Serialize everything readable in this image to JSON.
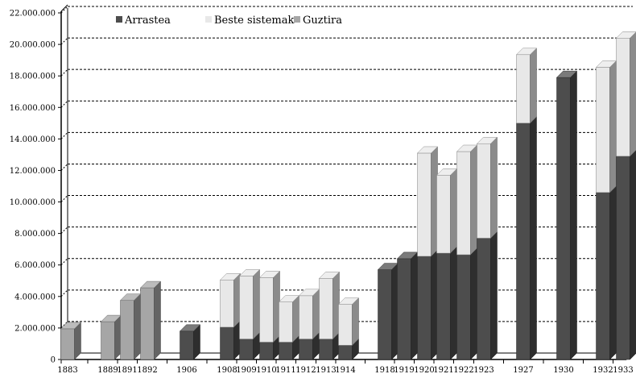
{
  "colors": {
    "arrastea": "#4d4d4d",
    "beste": "#e8e8e8",
    "guztira": "#a6a6a6"
  },
  "chart_data": {
    "type": "bar",
    "stacked": true,
    "three_d": true,
    "title": "",
    "xlabel": "",
    "ylabel": "",
    "ylim": [
      0,
      22000000
    ],
    "yticks": [
      0,
      2000000,
      4000000,
      6000000,
      8000000,
      10000000,
      12000000,
      14000000,
      16000000,
      18000000,
      20000000,
      22000000
    ],
    "ytick_labels": [
      "0",
      "2.000.000",
      "4.000.000",
      "6.000.000",
      "8.000.000",
      "10.000.000",
      "12.000.000",
      "14.000.000",
      "16.000.000",
      "18.000.000",
      "20.000.000",
      "22.000.000"
    ],
    "grid": true,
    "legend_position": "top-left",
    "categories": [
      "1883",
      "1889",
      "1891",
      "1892",
      "1906",
      "1908",
      "1909",
      "1910",
      "1911",
      "1912",
      "1913",
      "1914",
      "1918",
      "1919",
      "1920",
      "1921",
      "1922",
      "1923",
      "1927",
      "1930",
      "1932",
      "1933"
    ],
    "series": [
      {
        "name": "Arrastea",
        "color_key": "arrastea",
        "values": [
          0,
          0,
          0,
          0,
          1800000,
          2050000,
          1300000,
          1100000,
          1100000,
          1300000,
          1300000,
          900000,
          5700000,
          6400000,
          6550000,
          6750000,
          6650000,
          7700000,
          15000000,
          17900000,
          10600000,
          12900000
        ]
      },
      {
        "name": "Beste sistemak",
        "color_key": "beste",
        "values": [
          0,
          0,
          0,
          0,
          0,
          3000000,
          4000000,
          4100000,
          2550000,
          2750000,
          3850000,
          2600000,
          0,
          0,
          6550000,
          4950000,
          6550000,
          6000000,
          4350000,
          0,
          7950000,
          7500000
        ]
      },
      {
        "name": "Guztira",
        "color_key": "guztira",
        "values": [
          1950000,
          2400000,
          3750000,
          4550000,
          0,
          0,
          0,
          0,
          0,
          0,
          0,
          0,
          0,
          0,
          0,
          0,
          0,
          0,
          0,
          0,
          0,
          0
        ]
      }
    ]
  }
}
